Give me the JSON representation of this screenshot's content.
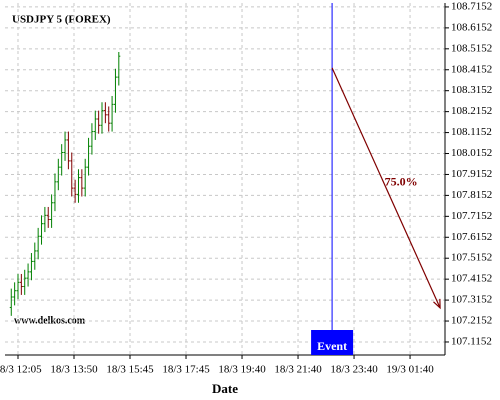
{
  "chart_data": {
    "type": "ohlc",
    "title": "USDJPY 5 (FOREX)",
    "watermark": "www.delkos.com",
    "x_label": "Date",
    "xlim": [
      -5.8,
      190.6
    ],
    "xticks": [
      {
        "value": 0,
        "label": "18/3 12:05"
      },
      {
        "value": 25,
        "label": "18/3 13:50"
      },
      {
        "value": 50,
        "label": "18/3 15:45"
      },
      {
        "value": 75,
        "label": "18/3 17:45"
      },
      {
        "value": 100,
        "label": "18/3 19:40"
      },
      {
        "value": 125,
        "label": "18/3 21:40"
      },
      {
        "value": 150,
        "label": "18/3 23:40"
      },
      {
        "value": 175,
        "label": "19/3 01:40"
      }
    ],
    "ylim": [
      107.053,
      108.734
    ],
    "yticks": [
      108.7152,
      108.6152,
      108.5152,
      108.4152,
      108.3152,
      108.2152,
      108.1152,
      108.0152,
      107.9152,
      107.8152,
      107.7152,
      107.6152,
      107.5152,
      107.4152,
      107.3152,
      107.2152,
      107.1152
    ],
    "grid": true,
    "up_color": "#008000",
    "down_color": "#800000",
    "ohlc": {
      "x": [
        -3,
        -1.5,
        0,
        1.5,
        3,
        4.5,
        6,
        7.5,
        9,
        10.5,
        12,
        13.5,
        15,
        16.5,
        18,
        19.5,
        21,
        22.5,
        24,
        25.5,
        27,
        28.5,
        30,
        31.5,
        33,
        34.5,
        36,
        37.5,
        39,
        40.5,
        42,
        43.5,
        45
      ],
      "open": [
        107.28,
        107.33,
        107.36,
        107.4,
        107.38,
        107.42,
        107.45,
        107.5,
        107.55,
        107.62,
        107.68,
        107.72,
        107.7,
        107.78,
        107.88,
        107.95,
        108.02,
        108.08,
        107.98,
        107.85,
        107.82,
        107.9,
        107.85,
        107.95,
        108.05,
        108.12,
        108.18,
        108.15,
        108.22,
        108.2,
        108.16,
        108.25,
        108.38
      ],
      "high": [
        107.37,
        107.4,
        107.44,
        107.44,
        107.46,
        107.49,
        107.54,
        107.59,
        107.66,
        107.72,
        107.76,
        107.76,
        107.82,
        107.92,
        107.99,
        108.06,
        108.12,
        108.12,
        108.02,
        107.89,
        107.94,
        107.94,
        107.99,
        108.09,
        108.16,
        108.22,
        108.22,
        108.26,
        108.26,
        108.24,
        108.29,
        108.42,
        108.5
      ],
      "low": [
        107.24,
        107.29,
        107.32,
        107.34,
        107.34,
        107.38,
        107.41,
        107.46,
        107.51,
        107.58,
        107.64,
        107.66,
        107.66,
        107.74,
        107.84,
        107.91,
        107.98,
        107.94,
        107.81,
        107.78,
        107.78,
        107.81,
        107.81,
        107.91,
        108.01,
        108.08,
        108.11,
        108.11,
        108.16,
        108.12,
        108.12,
        108.21,
        108.34
      ],
      "close": [
        107.33,
        107.36,
        107.4,
        107.38,
        107.42,
        107.45,
        107.5,
        107.55,
        107.62,
        107.68,
        107.72,
        107.7,
        107.78,
        107.88,
        107.95,
        108.02,
        108.08,
        107.98,
        107.85,
        107.82,
        107.9,
        107.85,
        107.95,
        108.05,
        108.12,
        108.18,
        108.15,
        108.22,
        108.2,
        108.16,
        108.25,
        108.38,
        108.48
      ]
    },
    "event": {
      "label": "Event",
      "x": 140.2,
      "color": "#0000ff"
    },
    "arrow": {
      "x": [
        140.2,
        188.4
      ],
      "y": [
        108.424,
        107.278
      ],
      "label": "75.0%",
      "color": "#800000"
    }
  }
}
